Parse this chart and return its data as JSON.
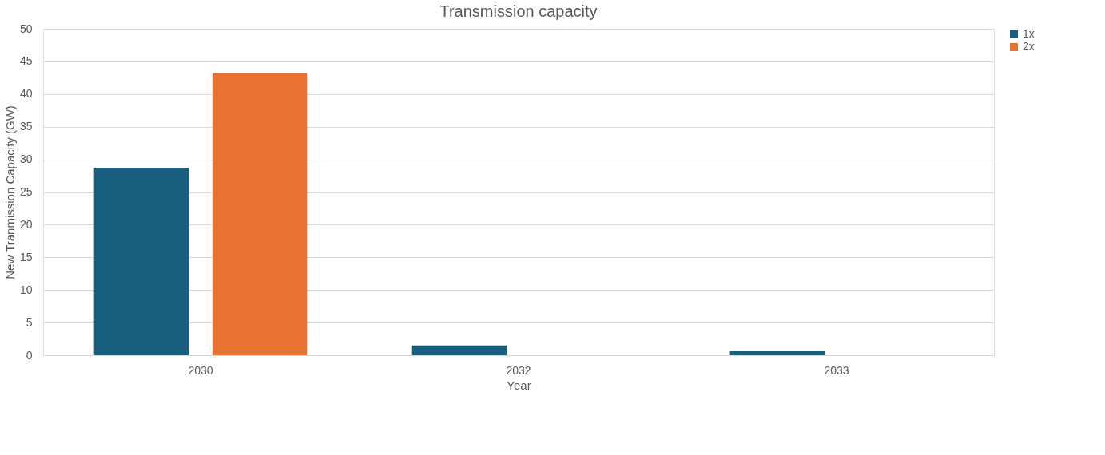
{
  "chart_data": {
    "type": "bar",
    "title": "Transmission capacity",
    "xlabel": "Year",
    "ylabel": "New Tranmission Capacity (GW)",
    "categories": [
      "2030",
      "2032",
      "2033"
    ],
    "series": [
      {
        "name": "1x",
        "color": "#175e7f",
        "values": [
          28.7,
          1.5,
          0.6
        ]
      },
      {
        "name": "2x",
        "color": "#e97132",
        "values": [
          43.2,
          0,
          0
        ]
      }
    ],
    "ylim": [
      0,
      50
    ],
    "yticks": [
      0,
      5,
      10,
      15,
      20,
      25,
      30,
      35,
      40,
      45,
      50
    ],
    "grid": "y",
    "legend": "right"
  }
}
